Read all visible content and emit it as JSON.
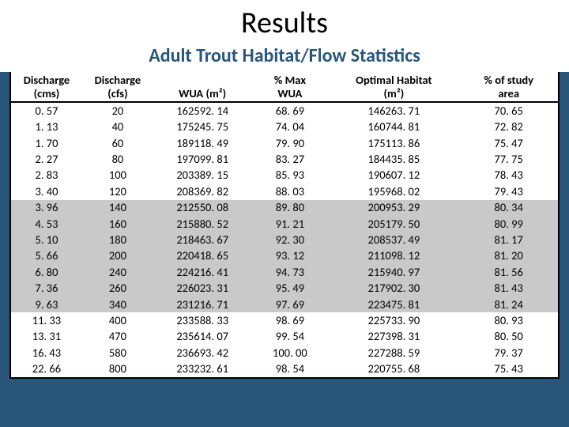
{
  "title": "Results",
  "subtitle": "Adult Trout Habitat/Flow Statistics",
  "table": {
    "columns": [
      {
        "line1": "Discharge",
        "line2": "(cms)"
      },
      {
        "line1": "Discharge",
        "line2": "(cfs)"
      },
      {
        "line1": "",
        "line2": "WUA (m²)"
      },
      {
        "line1": "% Max",
        "line2": "WUA"
      },
      {
        "line1": "Optimal Habitat",
        "line2": "(m²)"
      },
      {
        "line1": "% of study",
        "line2": "area"
      }
    ],
    "rows": [
      {
        "hl": false,
        "c": [
          "0. 57",
          "20",
          "162592. 14",
          "68. 69",
          "146263. 71",
          "70. 65"
        ]
      },
      {
        "hl": false,
        "c": [
          "1. 13",
          "40",
          "175245. 75",
          "74. 04",
          "160744. 81",
          "72. 82"
        ]
      },
      {
        "hl": false,
        "c": [
          "1. 70",
          "60",
          "189118. 49",
          "79. 90",
          "175113. 86",
          "75. 47"
        ]
      },
      {
        "hl": false,
        "c": [
          "2. 27",
          "80",
          "197099. 81",
          "83. 27",
          "184435. 85",
          "77. 75"
        ]
      },
      {
        "hl": false,
        "c": [
          "2. 83",
          "100",
          "203389. 15",
          "85. 93",
          "190607. 12",
          "78. 43"
        ]
      },
      {
        "hl": false,
        "c": [
          "3. 40",
          "120",
          "208369. 82",
          "88. 03",
          "195968. 02",
          "79. 43"
        ]
      },
      {
        "hl": true,
        "c": [
          "3. 96",
          "140",
          "212550. 08",
          "89. 80",
          "200953. 29",
          "80. 34"
        ]
      },
      {
        "hl": true,
        "c": [
          "4. 53",
          "160",
          "215880. 52",
          "91. 21",
          "205179. 50",
          "80. 99"
        ]
      },
      {
        "hl": true,
        "c": [
          "5. 10",
          "180",
          "218463. 67",
          "92. 30",
          "208537. 49",
          "81. 17"
        ]
      },
      {
        "hl": true,
        "c": [
          "5. 66",
          "200",
          "220418. 65",
          "93. 12",
          "211098. 12",
          "81. 20"
        ]
      },
      {
        "hl": true,
        "c": [
          "6. 80",
          "240",
          "224216. 41",
          "94. 73",
          "215940. 97",
          "81. 56"
        ]
      },
      {
        "hl": true,
        "c": [
          "7. 36",
          "260",
          "226023. 31",
          "95. 49",
          "217902. 30",
          "81. 43"
        ]
      },
      {
        "hl": true,
        "c": [
          "9. 63",
          "340",
          "231216. 71",
          "97. 69",
          "223475. 81",
          "81. 24"
        ]
      },
      {
        "hl": false,
        "c": [
          "11. 33",
          "400",
          "233588. 33",
          "98. 69",
          "225733. 90",
          "80. 93"
        ]
      },
      {
        "hl": false,
        "c": [
          "13. 31",
          "470",
          "235614. 07",
          "99. 54",
          "227398. 31",
          "80. 50"
        ]
      },
      {
        "hl": false,
        "c": [
          "16. 43",
          "580",
          "236693. 42",
          "100. 00",
          "227288. 59",
          "79. 37"
        ]
      },
      {
        "hl": false,
        "c": [
          "22. 66",
          "800",
          "233232. 61",
          "98. 54",
          "220755. 68",
          "75. 43"
        ]
      }
    ]
  }
}
